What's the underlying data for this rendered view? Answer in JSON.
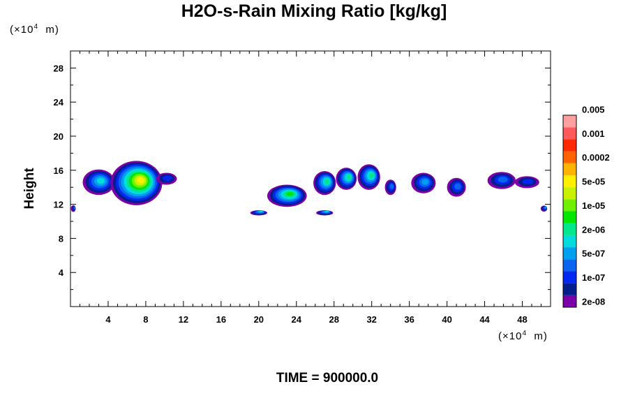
{
  "chart_data": {
    "type": "heatmap",
    "title": "H2O-s-Rain Mixing Ratio [kg/kg]",
    "ylabel": "Height",
    "xunit": "m",
    "yunit": "m",
    "xunit_exp": "4",
    "yunit_exp": "4",
    "unit_prefix": "(×10",
    "footer": "TIME = 900000.0",
    "xlim": [
      0,
      51
    ],
    "ylim": [
      0,
      30
    ],
    "xticks": [
      "4",
      "8",
      "12",
      "16",
      "20",
      "24",
      "28",
      "32",
      "36",
      "40",
      "44",
      "48"
    ],
    "yticks": [
      "4",
      "8",
      "12",
      "16",
      "20",
      "24",
      "28"
    ],
    "colorbar": {
      "levels": [
        "2e-08",
        "1e-07",
        "5e-07",
        "2e-06",
        "1e-05",
        "5e-05",
        "0.0002",
        "0.001",
        "0.005"
      ],
      "colors": [
        "#7B00A8",
        "#001E8C",
        "#0028F0",
        "#0A64F0",
        "#00A0F0",
        "#00DCDC",
        "#00E68C",
        "#00E600",
        "#6EF000",
        "#C8F000",
        "#FFF000",
        "#FFB400",
        "#FF6400",
        "#FF2800",
        "#FF5A5A",
        "#FFA0A0"
      ]
    },
    "features": [
      {
        "name": "cloud-0",
        "x": 0.3,
        "y": 11.5,
        "w": 0.5,
        "h": 0.8,
        "peak": 4
      },
      {
        "name": "cloud-1",
        "x": 3.0,
        "y": 14.6,
        "w": 3.4,
        "h": 3.0,
        "peak": 6
      },
      {
        "name": "cloud-2",
        "x": 7.0,
        "y": 14.5,
        "w": 5.5,
        "h": 5.2,
        "peak": 11
      },
      {
        "name": "cloud-3",
        "x": 10.2,
        "y": 15.0,
        "w": 2.2,
        "h": 1.4,
        "peak": 3
      },
      {
        "name": "cloud-4",
        "x": 20.0,
        "y": 11.0,
        "w": 1.8,
        "h": 0.6,
        "peak": 6
      },
      {
        "name": "cloud-5",
        "x": 27.0,
        "y": 11.0,
        "w": 1.8,
        "h": 0.6,
        "peak": 6
      },
      {
        "name": "cloud-6",
        "x": 23.0,
        "y": 13.0,
        "w": 4.2,
        "h": 2.6,
        "peak": 8
      },
      {
        "name": "cloud-7",
        "x": 27.0,
        "y": 14.5,
        "w": 2.4,
        "h": 2.8,
        "peak": 7
      },
      {
        "name": "cloud-8",
        "x": 29.3,
        "y": 15.0,
        "w": 2.2,
        "h": 2.6,
        "peak": 7
      },
      {
        "name": "cloud-9",
        "x": 31.7,
        "y": 15.2,
        "w": 2.4,
        "h": 3.0,
        "peak": 7
      },
      {
        "name": "cloud-10",
        "x": 34.0,
        "y": 14.0,
        "w": 1.2,
        "h": 1.8,
        "peak": 4
      },
      {
        "name": "cloud-11",
        "x": 37.5,
        "y": 14.5,
        "w": 2.6,
        "h": 2.4,
        "peak": 5
      },
      {
        "name": "cloud-12",
        "x": 41.0,
        "y": 14.0,
        "w": 2.0,
        "h": 2.2,
        "peak": 4
      },
      {
        "name": "cloud-13",
        "x": 45.8,
        "y": 14.8,
        "w": 3.0,
        "h": 2.0,
        "peak": 4
      },
      {
        "name": "cloud-14",
        "x": 48.5,
        "y": 14.6,
        "w": 2.6,
        "h": 1.4,
        "peak": 3
      },
      {
        "name": "cloud-15",
        "x": 50.3,
        "y": 11.5,
        "w": 0.7,
        "h": 0.7,
        "peak": 5
      }
    ]
  }
}
